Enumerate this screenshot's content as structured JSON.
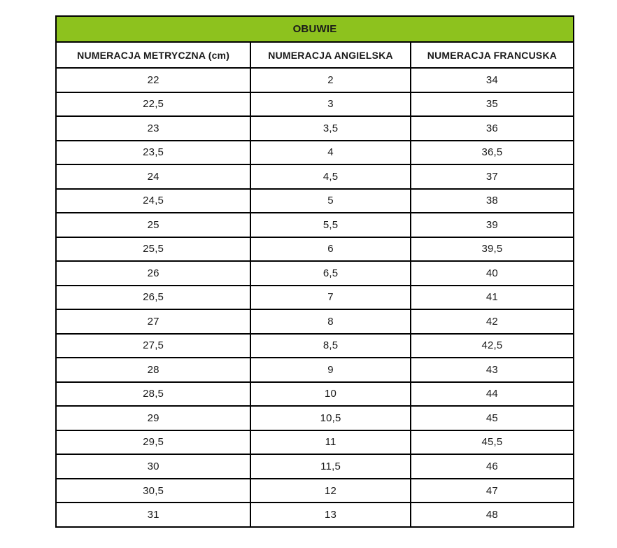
{
  "chart_data": {
    "type": "table",
    "title": "OBUWIE",
    "columns": [
      "NUMERACJA METRYCZNA (cm)",
      "NUMERACJA ANGIELSKA",
      "NUMERACJA FRANCUSKA"
    ],
    "rows": [
      [
        "22",
        "2",
        "34"
      ],
      [
        "22,5",
        "3",
        "35"
      ],
      [
        "23",
        "3,5",
        "36"
      ],
      [
        "23,5",
        "4",
        "36,5"
      ],
      [
        "24",
        "4,5",
        "37"
      ],
      [
        "24,5",
        "5",
        "38"
      ],
      [
        "25",
        "5,5",
        "39"
      ],
      [
        "25,5",
        "6",
        "39,5"
      ],
      [
        "26",
        "6,5",
        "40"
      ],
      [
        "26,5",
        "7",
        "41"
      ],
      [
        "27",
        "8",
        "42"
      ],
      [
        "27,5",
        "8,5",
        "42,5"
      ],
      [
        "28",
        "9",
        "43"
      ],
      [
        "28,5",
        "10",
        "44"
      ],
      [
        "29",
        "10,5",
        "45"
      ],
      [
        "29,5",
        "11",
        "45,5"
      ],
      [
        "30",
        "11,5",
        "46"
      ],
      [
        "30,5",
        "12",
        "47"
      ],
      [
        "31",
        "13",
        "48"
      ]
    ]
  },
  "colors": {
    "header_bg": "#8dc21e",
    "border": "#000000",
    "text": "#1a1a1a",
    "page_bg": "#ffffff"
  }
}
